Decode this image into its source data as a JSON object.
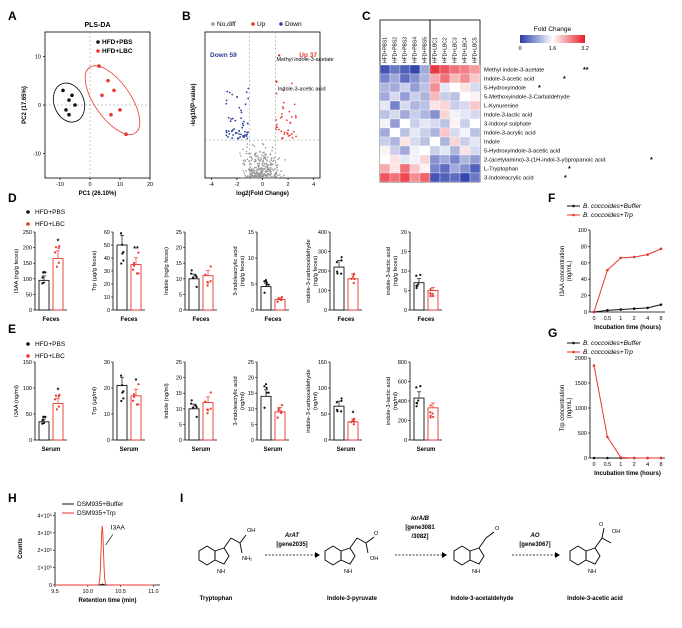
{
  "panels": {
    "A": "A",
    "B": "B",
    "C": "C",
    "D": "D",
    "E": "E",
    "F": "F",
    "G": "G",
    "H": "H",
    "I": "I"
  },
  "colors": {
    "red": "#e8372c",
    "black": "#111111",
    "blue": "#2c3e9c",
    "grey": "#999999"
  },
  "chart_data": [
    {
      "id": "A",
      "type": "scatter",
      "title": "PLS-DA",
      "xlabel": "PC1 (26.10%)",
      "ylabel": "PC2 (17.65%)",
      "xlim": [
        -15,
        20
      ],
      "ylim": [
        -15,
        15
      ],
      "xticks": [
        "-10",
        "0",
        "10",
        "20"
      ],
      "yticks": [
        "-10",
        "0",
        "10"
      ],
      "series": [
        {
          "name": "HFD+PBS",
          "color": "#111111",
          "points": [
            [
              -9,
              3
            ],
            [
              -7,
              1
            ],
            [
              -8,
              -1
            ],
            [
              -6,
              2
            ],
            [
              -7,
              -2
            ],
            [
              -5,
              0
            ]
          ]
        },
        {
          "name": "HFD+LBC",
          "color": "#e8372c",
          "points": [
            [
              3,
              8
            ],
            [
              6,
              5
            ],
            [
              8,
              3
            ],
            [
              10,
              -1
            ],
            [
              12,
              -6
            ],
            [
              7,
              -2
            ],
            [
              4,
              2
            ]
          ]
        }
      ]
    },
    {
      "id": "B",
      "type": "scatter",
      "title": "",
      "xlabel": "log2(Fold Change)",
      "ylabel": "-log10(P-value)",
      "xticks": [
        "-4",
        "-2",
        "0",
        "2",
        "4"
      ],
      "legend": [
        "No.diff",
        "Up",
        "Down"
      ],
      "down_label": "Down 59",
      "up_label": "Up 37",
      "annotations": [
        "Methyl indole-3-acetate",
        "Indole-3-acetic acid"
      ]
    },
    {
      "id": "C",
      "type": "heatmap",
      "legend_title": "Fold Change",
      "scale_ticks": [
        "0",
        "1.6",
        "3.2"
      ],
      "columns": [
        "HFD+PBS1",
        "HFD+PBS2",
        "HFD+PBS3",
        "HFD+PBS4",
        "HFD+PBS5",
        "HFD+LBC1",
        "HFD+LBC2",
        "HFD+LBC3",
        "HFD+LBC4",
        "HFD+LBC5"
      ],
      "rows": [
        {
          "name": "Methyl indole-3-acetate",
          "sig": "**"
        },
        {
          "name": "Indole-3-acetic acid",
          "sig": "*"
        },
        {
          "name": "5-Hydroxyindole",
          "sig": "*"
        },
        {
          "name": "5-Methoxyindole-3-Carbaldehyde",
          "sig": ""
        },
        {
          "name": "L-Kynurenine",
          "sig": ""
        },
        {
          "name": "Indole-3-lactic acid",
          "sig": ""
        },
        {
          "name": "3-Indoxyl sulphate",
          "sig": ""
        },
        {
          "name": "Indole-3-acrylic acid",
          "sig": ""
        },
        {
          "name": "Indole",
          "sig": ""
        },
        {
          "name": "5-Hydroxyindole-3-acetic acid",
          "sig": ""
        },
        {
          "name": "2-(acetylamino)-3-(1H-indol-3-yl)propanoic acid",
          "sig": "*"
        },
        {
          "name": "L-Tryptophan",
          "sig": "*"
        },
        {
          "name": "3-Indoleacrylic acid",
          "sig": "*"
        }
      ],
      "values": [
        [
          0.2,
          0.5,
          0.3,
          0.1,
          0.9,
          3.0,
          2.8,
          2.6,
          2.5,
          2.3
        ],
        [
          0.6,
          0.9,
          0.4,
          0.7,
          1.0,
          2.2,
          2.6,
          2.1,
          2.4,
          2.0
        ],
        [
          1.0,
          0.9,
          1.2,
          0.8,
          1.1,
          2.4,
          1.4,
          1.6,
          1.8,
          1.3
        ],
        [
          0.9,
          1.3,
          0.8,
          1.2,
          1.0,
          2.1,
          1.2,
          1.1,
          1.6,
          1.7
        ],
        [
          1.4,
          0.6,
          1.3,
          1.0,
          1.1,
          1.8,
          1.9,
          1.2,
          1.3,
          2.0
        ],
        [
          1.1,
          1.3,
          0.9,
          1.2,
          1.0,
          0.7,
          1.9,
          1.5,
          1.4,
          1.3
        ],
        [
          1.5,
          0.8,
          1.6,
          1.2,
          1.4,
          1.3,
          1.1,
          1.7,
          1.2,
          1.6
        ],
        [
          0.9,
          1.6,
          1.1,
          1.4,
          1.2,
          1.0,
          2.0,
          1.3,
          1.5,
          1.1
        ],
        [
          1.2,
          1.0,
          1.8,
          1.3,
          1.1,
          1.6,
          1.0,
          1.9,
          1.2,
          1.4
        ],
        [
          1.7,
          1.2,
          0.9,
          1.5,
          1.6,
          1.2,
          1.4,
          1.0,
          1.8,
          1.3
        ],
        [
          1.6,
          1.8,
          1.4,
          1.5,
          1.9,
          0.7,
          0.9,
          0.6,
          1.0,
          0.8
        ],
        [
          2.2,
          1.8,
          2.6,
          2.0,
          1.7,
          0.6,
          0.4,
          0.9,
          0.7,
          0.3
        ],
        [
          2.8,
          2.6,
          2.9,
          2.4,
          2.7,
          0.2,
          0.3,
          0.4,
          0.1,
          0.5
        ]
      ]
    },
    {
      "id": "D",
      "type": "bar",
      "group_labels": [
        "HFD+PBS",
        "HFD+LBC"
      ],
      "xlabel": "Feces",
      "subplots": [
        {
          "ylabel": "I3AA (ng/g feces)",
          "yticks": [
            "0",
            "50",
            "100",
            "150",
            "200",
            "250"
          ],
          "ymax": 250,
          "values": [
            95,
            165
          ],
          "sig": "*"
        },
        {
          "ylabel": "Trp (µg/g feces)",
          "yticks": [
            "0",
            "10",
            "20",
            "30",
            "40",
            "50",
            "60"
          ],
          "ymax": 60,
          "values": [
            50,
            35
          ],
          "sig": "**"
        },
        {
          "ylabel": "Indole (ng/g feces)",
          "yticks": [
            "0",
            "5",
            "10",
            "15",
            "20",
            "25"
          ],
          "ymax": 25,
          "values": [
            10,
            11
          ],
          "sig": ""
        },
        {
          "ylabel": "3-indoleacrylic acid (ng/g feces)",
          "yticks": [
            "0",
            "5",
            "10",
            "15"
          ],
          "ymax": 15,
          "values": [
            4.5,
            2
          ],
          "sig": ""
        },
        {
          "ylabel": "indole-3-carboxaldehyde (ng/g feces)",
          "yticks": [
            "0",
            "100",
            "200",
            "300",
            "400"
          ],
          "ymax": 400,
          "values": [
            220,
            160
          ],
          "sig": ""
        },
        {
          "ylabel": "indole-3-lactic acid (ng/g feces)",
          "yticks": [
            "0",
            "5",
            "10",
            "15",
            "20"
          ],
          "ymax": 20,
          "values": [
            7,
            5
          ],
          "sig": ""
        }
      ]
    },
    {
      "id": "E",
      "type": "bar",
      "group_labels": [
        "HFD+PBS",
        "HFD+LBC"
      ],
      "xlabel": "Serum",
      "subplots": [
        {
          "ylabel": "I3AA (ng/ml)",
          "yticks": [
            "0",
            "50",
            "100",
            "150"
          ],
          "ymax": 150,
          "values": [
            35,
            70
          ],
          "sig": "*"
        },
        {
          "ylabel": "Trp (µg/ml)",
          "yticks": [
            "0",
            "10",
            "20",
            "30"
          ],
          "ymax": 30,
          "values": [
            21,
            17
          ],
          "sig": "*"
        },
        {
          "ylabel": "Indole (ng/ml)",
          "yticks": [
            "0",
            "5",
            "10",
            "15",
            "20",
            "25"
          ],
          "ymax": 25,
          "values": [
            10,
            12
          ],
          "sig": ""
        },
        {
          "ylabel": "3-indoleacrylic acid (ng/ml)",
          "yticks": [
            "0",
            "5",
            "10",
            "15",
            "20",
            "25"
          ],
          "ymax": 25,
          "values": [
            14,
            9
          ],
          "sig": ""
        },
        {
          "ylabel": "indole-3-carboxaldehyde (ng/ml)",
          "yticks": [
            "0",
            "50",
            "100",
            "150"
          ],
          "ymax": 150,
          "values": [
            65,
            35
          ],
          "sig": "*"
        },
        {
          "ylabel": "indole-3-lactic acid (ng/ml)",
          "yticks": [
            "0",
            "200",
            "400",
            "600",
            "800"
          ],
          "ymax": 800,
          "values": [
            430,
            330
          ],
          "sig": ""
        }
      ]
    },
    {
      "id": "F",
      "type": "line",
      "xlabel": "Incubation time (hours)",
      "ylabel": "I3AA concentration (ng/mL)",
      "x": [
        "0",
        "0.5",
        "1",
        "2",
        "4",
        "8"
      ],
      "yticks": [
        "0",
        "20",
        "40",
        "60",
        "80",
        "100"
      ],
      "ymax": 100,
      "series": [
        {
          "name": "B. coccoides+Buffer",
          "color": "#111111",
          "values": [
            0,
            2,
            3,
            4,
            5,
            9
          ]
        },
        {
          "name": "B. coccoides+Trp",
          "color": "#e8372c",
          "values": [
            0,
            51,
            66,
            67,
            70,
            77
          ]
        }
      ]
    },
    {
      "id": "G",
      "type": "line",
      "xlabel": "Incubation time (hours)",
      "ylabel": "Trp concentration (ng/mL)",
      "x": [
        "0",
        "0.5",
        "1",
        "2",
        "4",
        "8"
      ],
      "yticks": [
        "0",
        "500",
        "1000",
        "1500",
        "2000"
      ],
      "ymax": 2000,
      "series": [
        {
          "name": "B. coccoides+Buffer",
          "color": "#111111",
          "values": [
            0,
            0,
            0,
            0,
            0,
            0
          ]
        },
        {
          "name": "B. coccoides+Trp",
          "color": "#e8372c",
          "values": [
            1850,
            420,
            10,
            0,
            0,
            0
          ]
        }
      ]
    },
    {
      "id": "H",
      "type": "line",
      "xlabel": "Retention time (min)",
      "ylabel": "Counts",
      "xticks": [
        "9.5",
        "10.0",
        "10.5",
        "11.0"
      ],
      "yticks": [
        "0",
        "1×10⁵",
        "2×10⁵",
        "3×10⁵",
        "4×10⁵"
      ],
      "peak_label": "I3AA",
      "series": [
        {
          "name": "DSM935+Buffer",
          "color": "#111111",
          "peak": 0.05
        },
        {
          "name": "DSM935+Trp",
          "color": "#e8372c",
          "peak": 3.4
        }
      ]
    }
  ],
  "pathway": {
    "compounds": [
      "Tryptophan",
      "Indole-3-pyruvate",
      "Indole-3-acetaldehyde",
      "Indole-3-acetic acid"
    ],
    "enzymes": [
      {
        "name": "ArAT",
        "gene": "[gene2035]"
      },
      {
        "name": "iorA/B",
        "gene": "[gene3081",
        "gene2": "/3082]"
      },
      {
        "name": "AO",
        "gene": "[gene3067]"
      }
    ],
    "atoms": {
      "oh": "OH",
      "nh2": "NH₂",
      "nh": "NH",
      "o": "O"
    }
  }
}
